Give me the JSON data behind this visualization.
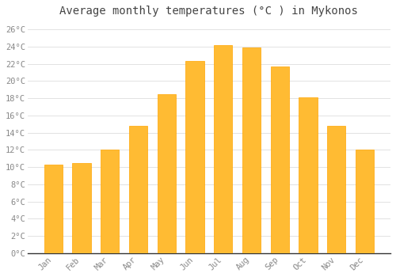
{
  "title": "Average monthly temperatures (°C ) in Mykonos",
  "months": [
    "Jan",
    "Feb",
    "Mar",
    "Apr",
    "May",
    "Jun",
    "Jul",
    "Aug",
    "Sep",
    "Oct",
    "Nov",
    "Dec"
  ],
  "temperatures": [
    10.3,
    10.5,
    12.0,
    14.8,
    18.5,
    22.3,
    24.2,
    23.9,
    21.7,
    18.1,
    14.8,
    12.0
  ],
  "bar_color": "#FFBB33",
  "bar_color_bottom": "#FFA500",
  "bar_edge_color": "#FFA500",
  "background_color": "#FFFFFF",
  "grid_color": "#DDDDDD",
  "text_color": "#888888",
  "title_color": "#444444",
  "ylim": [
    0,
    27
  ],
  "yticks": [
    0,
    2,
    4,
    6,
    8,
    10,
    12,
    14,
    16,
    18,
    20,
    22,
    24,
    26
  ],
  "title_fontsize": 10,
  "tick_fontsize": 7.5,
  "bar_width": 0.65
}
